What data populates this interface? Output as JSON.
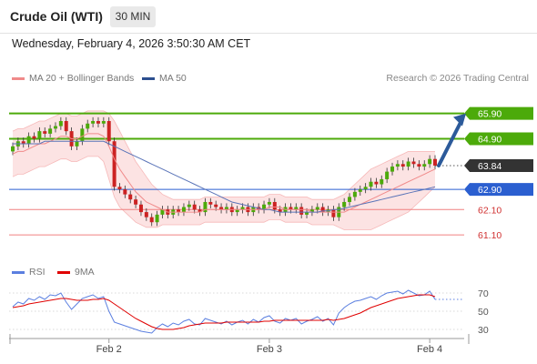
{
  "header": {
    "title": "Crude Oil (WTI)",
    "interval": "30 MIN"
  },
  "datetime": "Wednesday, February 4, 2026 3:50:30 AM CET",
  "legend": {
    "ma20_label": "MA 20 + Bollinger Bands",
    "ma50_label": "MA 50",
    "copyright": "Research © 2026 Trading Central",
    "colors": {
      "ma20": "#f08a8a",
      "ma50": "#2c4f8f"
    }
  },
  "rsi_legend": {
    "rsi_label": "RSI",
    "ma_label": "9MA",
    "colors": {
      "rsi": "#5b7fe0",
      "ma": "#e00000"
    }
  },
  "chart_data": [
    {
      "type": "candlestick",
      "title": "Crude Oil (WTI)",
      "interval": "30 MIN",
      "ylim": [
        60.6,
        66.5
      ],
      "x_tick_labels": [
        "Feb 2",
        "Feb 3",
        "Feb 4"
      ],
      "last_price": 63.84,
      "levels": [
        {
          "value": 65.9,
          "label": "65.90",
          "kind": "resistance"
        },
        {
          "value": 64.9,
          "label": "64.90",
          "kind": "resistance"
        },
        {
          "value": 63.84,
          "label": "63.84",
          "kind": "last"
        },
        {
          "value": 62.9,
          "label": "62.90",
          "kind": "pivot"
        },
        {
          "value": 62.1,
          "label": "62.10",
          "kind": "support"
        },
        {
          "value": 61.1,
          "label": "61.10",
          "kind": "support"
        }
      ],
      "forecast_arrow": {
        "from": 63.84,
        "to": 65.9,
        "direction": "up"
      },
      "close": [
        64.6,
        64.8,
        64.7,
        65.0,
        64.9,
        65.2,
        65.1,
        65.3,
        65.4,
        65.6,
        65.2,
        64.6,
        64.8,
        65.3,
        65.5,
        65.6,
        65.5,
        65.6,
        64.8,
        63.0,
        62.9,
        62.7,
        62.5,
        62.3,
        62.0,
        61.8,
        61.6,
        61.9,
        62.1,
        61.9,
        62.1,
        62.0,
        62.2,
        62.3,
        62.1,
        62.0,
        62.4,
        62.3,
        62.2,
        62.1,
        62.2,
        62.0,
        62.1,
        62.2,
        62.0,
        62.2,
        62.1,
        62.3,
        62.4,
        62.1,
        62.0,
        62.2,
        62.1,
        62.2,
        61.9,
        62.0,
        62.1,
        62.2,
        62.0,
        62.1,
        61.8,
        62.2,
        62.4,
        62.6,
        62.8,
        62.9,
        63.0,
        63.2,
        63.1,
        63.3,
        63.6,
        63.8,
        63.9,
        63.8,
        64.0,
        63.9,
        63.8,
        63.9,
        64.1,
        63.84
      ],
      "ma20": [
        64.3,
        64.4,
        64.4,
        64.5,
        64.6,
        64.7,
        64.7,
        64.8,
        64.9,
        65.0,
        65.0,
        64.9,
        64.9,
        65.0,
        65.1,
        65.1,
        65.1,
        65.0,
        64.6,
        64.1,
        63.7,
        63.4,
        63.1,
        62.8,
        62.6,
        62.4,
        62.3,
        62.2,
        62.1,
        62.0,
        62.0,
        62.0,
        62.0,
        62.0,
        62.0,
        62.0,
        62.1,
        62.1,
        62.1,
        62.1,
        62.1,
        62.1,
        62.1,
        62.1,
        62.1,
        62.1,
        62.1,
        62.1,
        62.2,
        62.2,
        62.2,
        62.1,
        62.1,
        62.1,
        62.1,
        62.1,
        62.0,
        62.0,
        62.0,
        62.0,
        62.0,
        62.0,
        62.0,
        62.1,
        62.2,
        62.3,
        62.4,
        62.5,
        62.6,
        62.7,
        62.8,
        62.9,
        63.0,
        63.1,
        63.2,
        63.3,
        63.4,
        63.5,
        63.6,
        63.7
      ],
      "ma50": [
        64.7,
        64.7,
        64.7,
        64.7,
        64.7,
        64.7,
        64.8,
        64.8,
        64.8,
        64.8,
        64.8,
        64.8,
        64.8,
        64.8,
        64.8,
        64.8,
        64.8,
        64.8,
        64.7,
        64.6,
        64.5,
        64.4,
        64.3,
        64.2,
        64.1,
        64.0,
        63.9,
        63.8,
        63.7,
        63.6,
        63.5,
        63.4,
        63.3,
        63.2,
        63.1,
        63.0,
        62.9,
        62.8,
        62.7,
        62.6,
        62.5,
        62.4,
        62.35,
        62.3,
        62.25,
        62.2,
        62.15,
        62.1,
        62.1,
        62.05,
        62.0,
        62.0,
        62.0,
        62.0,
        62.0,
        62.0,
        62.0,
        62.0,
        62.05,
        62.05,
        62.1,
        62.1,
        62.15,
        62.2,
        62.25,
        62.3,
        62.35,
        62.4,
        62.45,
        62.5,
        62.55,
        62.6,
        62.65,
        62.7,
        62.75,
        62.8,
        62.85,
        62.9,
        62.95,
        63.0
      ],
      "bb_upper": [
        65.2,
        65.3,
        65.3,
        65.4,
        65.5,
        65.6,
        65.6,
        65.7,
        65.8,
        65.9,
        65.9,
        65.8,
        65.8,
        65.9,
        66.0,
        66.0,
        66.0,
        66.0,
        65.9,
        65.6,
        65.2,
        64.8,
        64.4,
        64.0,
        63.7,
        63.4,
        63.1,
        62.9,
        62.7,
        62.6,
        62.5,
        62.5,
        62.5,
        62.5,
        62.5,
        62.5,
        62.6,
        62.6,
        62.6,
        62.6,
        62.6,
        62.6,
        62.6,
        62.6,
        62.6,
        62.6,
        62.6,
        62.6,
        62.7,
        62.7,
        62.7,
        62.6,
        62.6,
        62.6,
        62.6,
        62.6,
        62.5,
        62.5,
        62.5,
        62.5,
        62.5,
        62.6,
        62.7,
        62.9,
        63.1,
        63.3,
        63.5,
        63.7,
        63.8,
        63.9,
        64.0,
        64.1,
        64.2,
        64.3,
        64.4,
        64.4,
        64.4,
        64.4,
        64.4,
        64.4
      ],
      "bb_lower": [
        63.4,
        63.5,
        63.5,
        63.6,
        63.7,
        63.8,
        63.8,
        63.9,
        64.0,
        64.1,
        64.1,
        64.0,
        64.0,
        64.1,
        64.2,
        64.2,
        64.2,
        64.0,
        63.3,
        62.6,
        62.2,
        62.0,
        61.8,
        61.6,
        61.5,
        61.4,
        61.4,
        61.4,
        61.5,
        61.5,
        61.5,
        61.5,
        61.5,
        61.5,
        61.5,
        61.5,
        61.6,
        61.6,
        61.6,
        61.6,
        61.6,
        61.6,
        61.6,
        61.6,
        61.6,
        61.6,
        61.6,
        61.6,
        61.7,
        61.7,
        61.7,
        61.6,
        61.6,
        61.6,
        61.6,
        61.6,
        61.5,
        61.5,
        61.5,
        61.5,
        61.5,
        61.4,
        61.3,
        61.3,
        61.3,
        61.3,
        61.3,
        61.3,
        61.4,
        61.5,
        61.6,
        61.7,
        61.8,
        61.9,
        62.0,
        62.2,
        62.4,
        62.6,
        62.8,
        63.0
      ]
    },
    {
      "type": "line",
      "title": "RSI",
      "ylim": [
        20,
        80
      ],
      "y_tick_labels": [
        "70",
        "50",
        "30"
      ],
      "reference_levels": [
        70,
        50,
        30
      ],
      "last_values": {
        "rsi": 63,
        "ma": 66
      },
      "series": [
        {
          "name": "RSI",
          "values": [
            55,
            60,
            58,
            64,
            62,
            66,
            63,
            68,
            67,
            70,
            60,
            52,
            58,
            64,
            66,
            68,
            64,
            66,
            50,
            38,
            36,
            34,
            32,
            30,
            28,
            27,
            26,
            32,
            36,
            33,
            37,
            35,
            39,
            41,
            36,
            35,
            42,
            40,
            38,
            36,
            39,
            35,
            38,
            40,
            36,
            41,
            38,
            43,
            45,
            39,
            37,
            42,
            40,
            42,
            36,
            39,
            41,
            44,
            39,
            42,
            35,
            48,
            54,
            58,
            61,
            62,
            64,
            66,
            63,
            67,
            70,
            71,
            72,
            69,
            73,
            70,
            67,
            68,
            72,
            63
          ]
        },
        {
          "name": "9MA",
          "values": [
            54,
            55,
            56,
            58,
            59,
            60,
            61,
            62,
            63,
            64,
            64,
            63,
            62,
            62,
            62,
            63,
            63,
            64,
            62,
            58,
            54,
            50,
            46,
            42,
            39,
            36,
            33,
            31,
            30,
            30,
            30,
            31,
            32,
            34,
            35,
            36,
            37,
            37,
            37,
            37,
            38,
            38,
            38,
            38,
            38,
            38,
            38,
            39,
            39,
            40,
            40,
            40,
            40,
            40,
            40,
            40,
            40,
            40,
            40,
            41,
            40,
            41,
            42,
            44,
            46,
            48,
            51,
            54,
            56,
            58,
            60,
            62,
            64,
            65,
            66,
            67,
            68,
            68,
            68,
            66
          ]
        }
      ]
    }
  ]
}
